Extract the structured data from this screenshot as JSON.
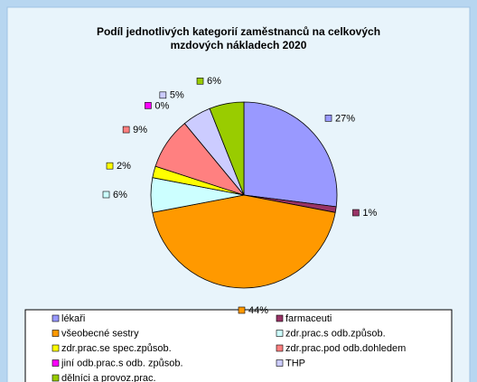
{
  "chart_data": {
    "type": "pie",
    "title": "Podíl jednotlivých kategorií zaměstnanců na celkových mzdových nákladech 2020",
    "categories": [
      "lékaři",
      "farmaceuti",
      "všeobecné sestry",
      "zdr.prac.s odb.způsob.",
      "zdr.prac.se spec.způsob.",
      "zdr.prac.pod odb.dohledem",
      "jiní odb.prac.s odb. způsob.",
      "THP",
      "dělníci a provoz.prac."
    ],
    "values": [
      27,
      1,
      44,
      6,
      2,
      9,
      0,
      5,
      6
    ],
    "value_labels": [
      "27%",
      "1%",
      "44%",
      "6%",
      "2%",
      "9%",
      "0%",
      "5%",
      "6%"
    ],
    "colors": [
      "#9999ff",
      "#993366",
      "#ff9900",
      "#ccffff",
      "#ffff00",
      "#ff8080",
      "#ff00ff",
      "#ccccff",
      "#99cc00"
    ],
    "legend": "bottom"
  }
}
